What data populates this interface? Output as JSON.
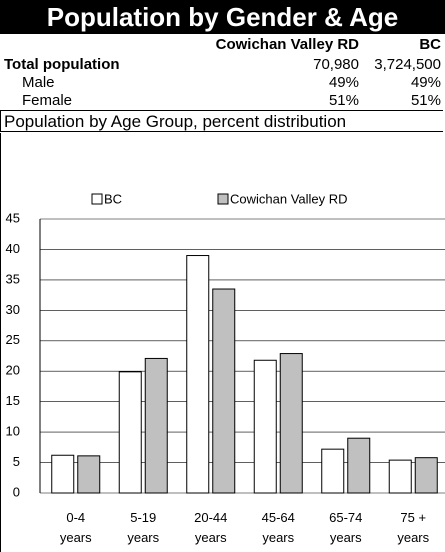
{
  "header": {
    "title": "Population by Gender & Age"
  },
  "table": {
    "columns": [
      "Cowichan Valley RD",
      "BC"
    ],
    "rows": [
      [
        "Total population",
        "70,980",
        "3,724,500"
      ],
      [
        "Male",
        "49%",
        "49%"
      ],
      [
        "Female",
        "51%",
        "51%"
      ]
    ]
  },
  "chart_data": {
    "type": "bar",
    "title": "Population by Age Group, percent distribution",
    "categories": [
      "0-4 years",
      "5-19 years",
      "20-44 years",
      "45-64 years",
      "65-74 years",
      "75 + years"
    ],
    "series": [
      {
        "name": "BC",
        "color": "#ffffff",
        "values": [
          6.2,
          19.9,
          39.0,
          21.8,
          7.2,
          5.4
        ]
      },
      {
        "name": "Cowichan Valley RD",
        "color": "#c0c0c0",
        "values": [
          6.1,
          22.1,
          33.5,
          22.9,
          9.0,
          5.8
        ]
      }
    ],
    "ylim": [
      0,
      45
    ],
    "yticks": [
      0,
      5,
      10,
      15,
      20,
      25,
      30,
      35,
      40,
      45
    ],
    "grid": true,
    "legend": "top"
  }
}
